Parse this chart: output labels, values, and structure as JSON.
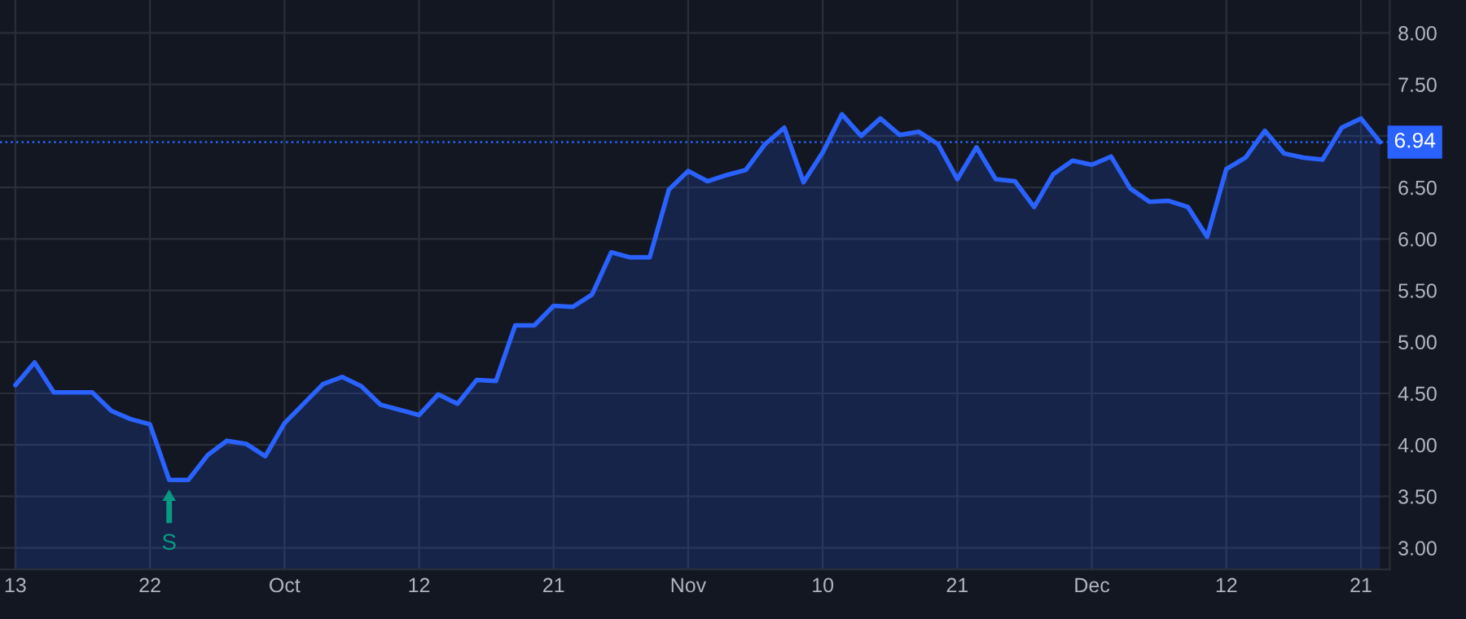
{
  "chart_data": {
    "type": "area",
    "categories": [
      "13",
      null,
      null,
      null,
      null,
      null,
      null,
      "22",
      null,
      null,
      null,
      null,
      null,
      null,
      "Oct",
      null,
      null,
      null,
      null,
      null,
      null,
      "12",
      null,
      null,
      null,
      null,
      null,
      null,
      "21",
      null,
      null,
      null,
      null,
      null,
      null,
      "Nov",
      null,
      null,
      null,
      null,
      null,
      null,
      "10",
      null,
      null,
      null,
      null,
      null,
      null,
      "21",
      null,
      null,
      null,
      null,
      null,
      null,
      "Dec",
      null,
      null,
      null,
      null,
      null,
      null,
      "12",
      null,
      null,
      null,
      null,
      null,
      null,
      "21",
      null
    ],
    "series": [
      {
        "color": "#2962ff",
        "values": [
          4.58,
          4.8,
          4.51,
          4.51,
          4.51,
          4.33,
          4.25,
          4.2,
          3.66,
          3.66,
          3.9,
          4.04,
          4.01,
          3.89,
          4.21,
          4.4,
          4.59,
          4.66,
          4.57,
          4.39,
          4.34,
          4.29,
          4.49,
          4.4,
          4.63,
          4.62,
          5.16,
          5.16,
          5.35,
          5.34,
          5.46,
          5.87,
          5.82,
          5.82,
          6.48,
          6.66,
          6.56,
          6.62,
          6.67,
          6.92,
          7.08,
          6.55,
          6.84,
          7.21,
          7.0,
          7.17,
          7.01,
          7.04,
          6.92,
          6.58,
          6.89,
          6.58,
          6.56,
          6.31,
          6.63,
          6.76,
          6.72,
          6.8,
          6.49,
          6.36,
          6.37,
          6.31,
          6.02,
          6.68,
          6.79,
          7.05,
          6.83,
          6.79,
          6.77,
          7.08,
          7.17,
          6.94
        ]
      }
    ],
    "ylim": [
      2.79,
      8.32
    ],
    "yticks": [
      {
        "value": 3,
        "label": "3.00"
      },
      {
        "value": 3.5,
        "label": "3.50"
      },
      {
        "value": 4,
        "label": "4.00"
      },
      {
        "value": 4.5,
        "label": "4.50"
      },
      {
        "value": 5,
        "label": "5.00"
      },
      {
        "value": 5.5,
        "label": "5.50"
      },
      {
        "value": 6,
        "label": "6.00"
      },
      {
        "value": 6.5,
        "label": "6.50"
      },
      {
        "value": 7,
        "label": null
      },
      {
        "value": 7.5,
        "label": "7.50"
      },
      {
        "value": 8,
        "label": "8.00"
      }
    ],
    "ref_lines": [
      {
        "axis": "y",
        "value": 6.94,
        "label": "6.94",
        "color": "#2962ff",
        "line_style": "dotted"
      }
    ],
    "annotations": [
      {
        "text": "S",
        "y": 3.66
      }
    ],
    "grid": true,
    "marker": "none",
    "line_style": "solid"
  }
}
